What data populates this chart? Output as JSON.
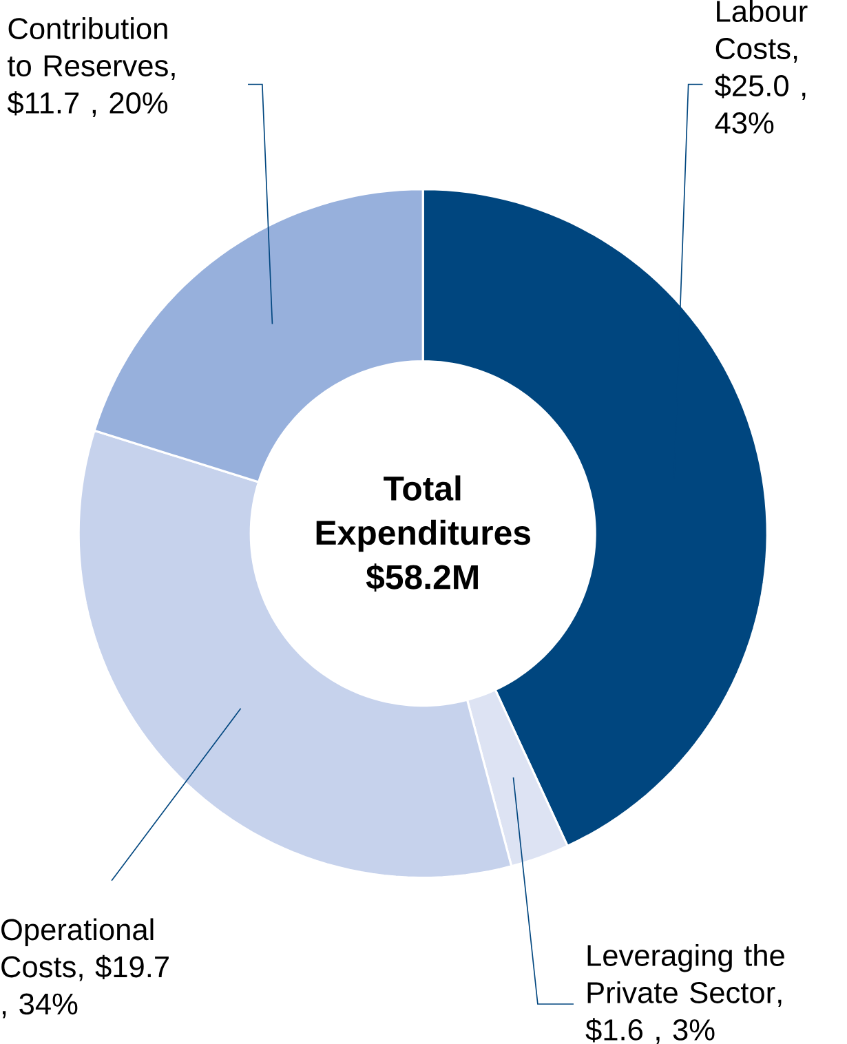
{
  "chart_data": {
    "type": "donut",
    "title": "Total Expenditures $58.2M",
    "categories": [
      "Labour Costs",
      "Leveraging the Private Sector",
      "Operational Costs",
      "Contribution to Reserves"
    ],
    "values": [
      25.0,
      1.6,
      19.7,
      11.7
    ],
    "colors": [
      "#00467f",
      "#dde3f3",
      "#c6d2ec",
      "#97b0dc"
    ],
    "value_labels": [
      ", $25.0 , 43%",
      ", $1.6 , 3%",
      ", $19.7 , 34%",
      ", $11.7 , 20%"
    ]
  }
}
